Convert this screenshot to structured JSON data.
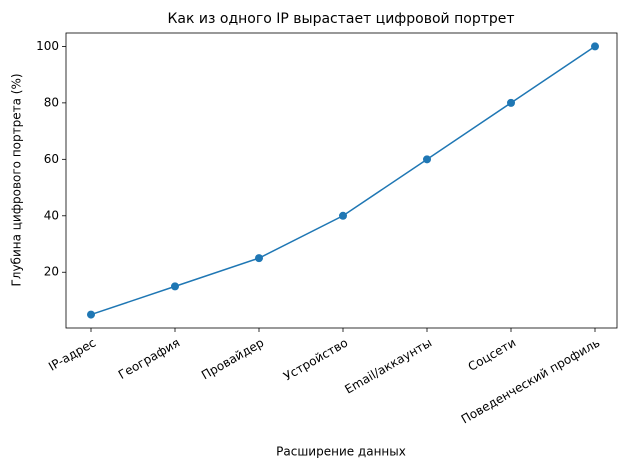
{
  "chart_data": {
    "type": "line",
    "title": "Как из одного IP вырастает цифровой портрет",
    "x_label": "Расширение данных",
    "y_label": "Глубина цифрового портрета (%)",
    "categories": [
      "IP-адрес",
      "География",
      "Провайдер",
      "Устройство",
      "Email/аккаунты",
      "Соцсети",
      "Поведенческий профиль"
    ],
    "series": [
      {
        "color": "#1f77b4",
        "values": [
          5,
          15,
          25,
          40,
          60,
          80,
          100
        ]
      }
    ],
    "ylim": [
      0.25,
      104.75
    ],
    "yticks": [
      20,
      40,
      60,
      80,
      100
    ],
    "grid": false,
    "markers": true
  }
}
